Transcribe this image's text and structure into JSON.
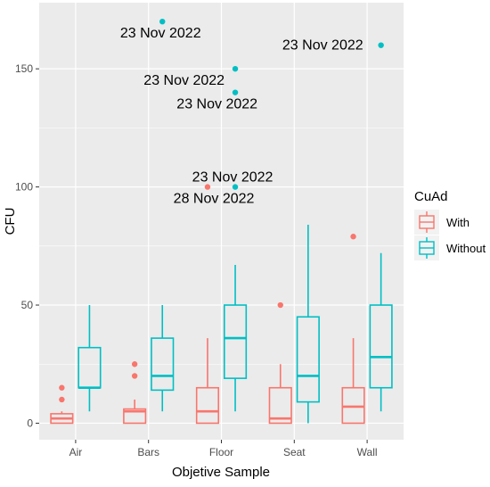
{
  "chart_data": {
    "type": "box",
    "xlabel": "Objetive Sample",
    "ylabel": "CFU",
    "categories": [
      "Air",
      "Bars",
      "Floor",
      "Seat",
      "Wall"
    ],
    "yticks": [
      0,
      50,
      100,
      150
    ],
    "ylim": [
      -7,
      178
    ],
    "grid": true,
    "legend": {
      "title": "CuAd",
      "position": "right"
    },
    "colors": {
      "With": "#F8766D",
      "Without": "#00BFC4",
      "panel": "#EBEBEB",
      "grid": "#FFFFFF"
    },
    "series": [
      {
        "name": "With",
        "boxes": [
          {
            "category": "Air",
            "whisker_low": 0,
            "q1": 0,
            "median": 2,
            "q3": 4,
            "whisker_high": 5
          },
          {
            "category": "Bars",
            "whisker_low": 0,
            "q1": 0,
            "median": 5,
            "q3": 6,
            "whisker_high": 10
          },
          {
            "category": "Floor",
            "whisker_low": 0,
            "q1": 0,
            "median": 5,
            "q3": 15,
            "whisker_high": 36
          },
          {
            "category": "Seat",
            "whisker_low": 0,
            "q1": 0,
            "median": 2,
            "q3": 15,
            "whisker_high": 25
          },
          {
            "category": "Wall",
            "whisker_low": 0,
            "q1": 0,
            "median": 7,
            "q3": 15,
            "whisker_high": 36
          }
        ],
        "outliers": [
          {
            "category": "Air",
            "y": 10
          },
          {
            "category": "Air",
            "y": 15
          },
          {
            "category": "Bars",
            "y": 20
          },
          {
            "category": "Bars",
            "y": 25
          },
          {
            "category": "Floor",
            "y": 100
          },
          {
            "category": "Seat",
            "y": 50
          },
          {
            "category": "Wall",
            "y": 79
          }
        ]
      },
      {
        "name": "Without",
        "boxes": [
          {
            "category": "Air",
            "whisker_low": 5,
            "q1": 15,
            "median": 15,
            "q3": 32,
            "whisker_high": 50
          },
          {
            "category": "Bars",
            "whisker_low": 5,
            "q1": 14,
            "median": 20,
            "q3": 36,
            "whisker_high": 50
          },
          {
            "category": "Floor",
            "whisker_low": 5,
            "q1": 19,
            "median": 36,
            "q3": 50,
            "whisker_high": 67
          },
          {
            "category": "Seat",
            "whisker_low": 0,
            "q1": 9,
            "median": 20,
            "q3": 45,
            "whisker_high": 84
          },
          {
            "category": "Wall",
            "whisker_low": 5,
            "q1": 15,
            "median": 28,
            "q3": 50,
            "whisker_high": 72
          }
        ],
        "outliers": [
          {
            "category": "Bars",
            "y": 170
          },
          {
            "category": "Floor",
            "y": 150
          },
          {
            "category": "Floor",
            "y": 140
          },
          {
            "category": "Floor",
            "y": 100
          },
          {
            "category": "Wall",
            "y": 160
          }
        ]
      }
    ],
    "annotations": [
      {
        "text": "23 Nov 2022",
        "category": "Bars",
        "y": 170
      },
      {
        "text": "23 Nov 2022",
        "category": "Floor",
        "y": 150
      },
      {
        "text": "23 Nov 2022",
        "category": "Floor",
        "y": 140
      },
      {
        "text": "23 Nov 2022",
        "category": "Floor",
        "y": 100
      },
      {
        "text": "28 Nov 2022",
        "category": "Floor",
        "y": 100
      },
      {
        "text": "23 Nov 2022",
        "category": "Wall",
        "y": 160
      }
    ]
  }
}
